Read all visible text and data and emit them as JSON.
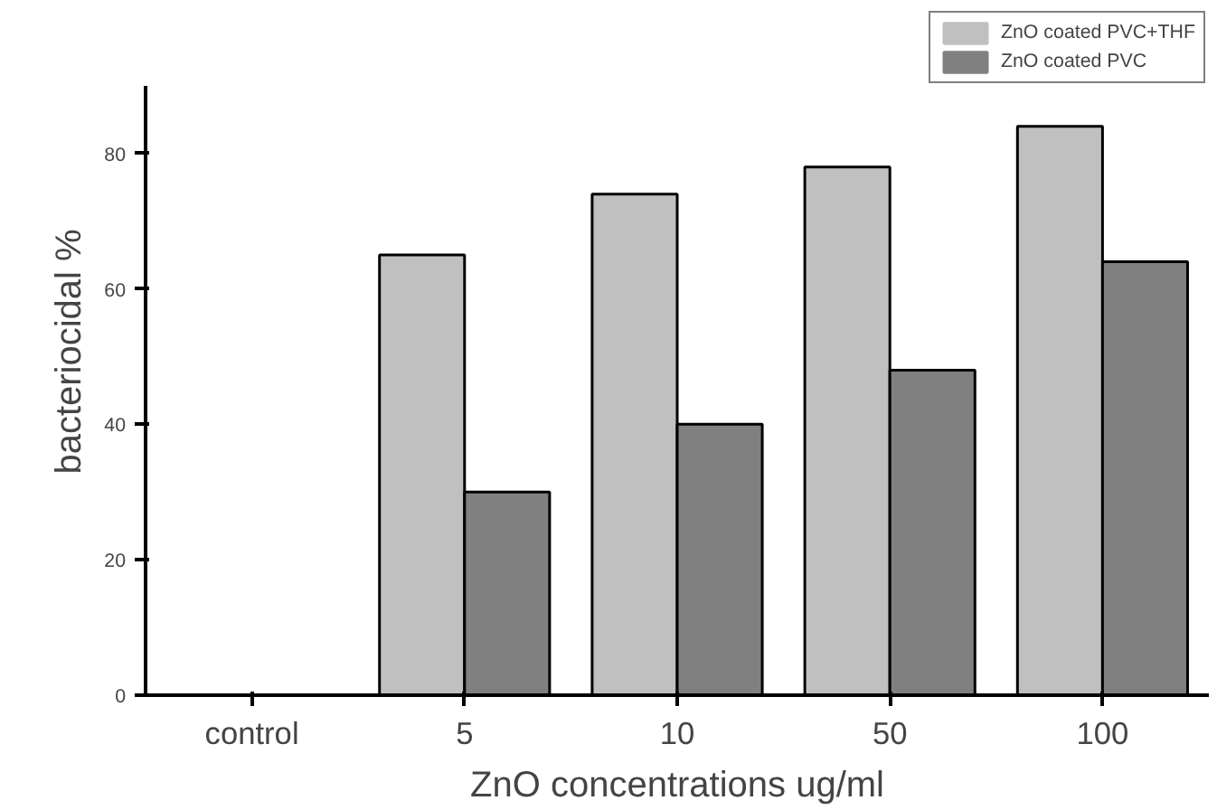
{
  "chart_data": {
    "type": "bar",
    "xlabel": "ZnO concentrations ug/ml",
    "ylabel": "bacteriocidal %",
    "categories": [
      "control",
      "5",
      "10",
      "50",
      "100"
    ],
    "series": [
      {
        "name": "ZnO coated PVC+THF",
        "color": "#c0c0c0",
        "values": [
          0,
          65,
          74,
          78,
          84
        ]
      },
      {
        "name": "ZnO coated PVC",
        "color": "#808080",
        "values": [
          0,
          30,
          40,
          48,
          64
        ]
      }
    ],
    "ylim": [
      0,
      90
    ],
    "yticks": [
      0,
      20,
      40,
      60,
      80
    ],
    "legend": "top right"
  }
}
